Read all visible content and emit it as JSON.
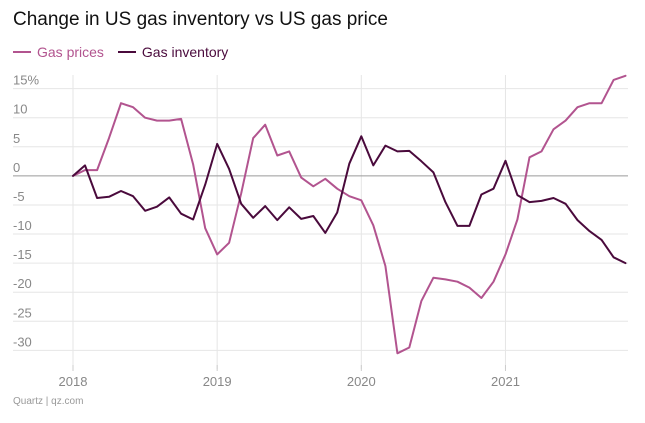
{
  "title": "Change in US gas inventory vs US gas price",
  "source": "Quartz | qz.com",
  "colors": {
    "prices": "#b2548f",
    "inventory": "#4a0a3c",
    "grid": "#e6e6e6",
    "zero": "#9a9a9a"
  },
  "chart_data": {
    "type": "line",
    "title": "Change in US gas inventory vs US gas price",
    "xlabel": "",
    "ylabel": "",
    "xlim": [
      2018.0,
      2021.85
    ],
    "ylim": [
      -32,
      17
    ],
    "y_ticks": [
      15,
      10,
      5,
      0,
      -5,
      -10,
      -15,
      -20,
      -25,
      -30
    ],
    "y_tick_labels": [
      "15%",
      "10",
      "5",
      "0",
      "-5",
      "-10",
      "-15",
      "-20",
      "-25",
      "-30"
    ],
    "x_ticks": [
      2018,
      2019,
      2020,
      2021
    ],
    "x_tick_labels": [
      "2018",
      "2019",
      "2020",
      "2021"
    ],
    "grid": true,
    "legend_position": "top-left",
    "x": [
      2018.0,
      2018.083,
      2018.167,
      2018.25,
      2018.333,
      2018.417,
      2018.5,
      2018.583,
      2018.667,
      2018.75,
      2018.833,
      2018.917,
      2019.0,
      2019.083,
      2019.167,
      2019.25,
      2019.333,
      2019.417,
      2019.5,
      2019.583,
      2019.667,
      2019.75,
      2019.833,
      2019.917,
      2020.0,
      2020.083,
      2020.167,
      2020.25,
      2020.333,
      2020.417,
      2020.5,
      2020.583,
      2020.667,
      2020.75,
      2020.833,
      2020.917,
      2021.0,
      2021.083,
      2021.167,
      2021.25,
      2021.333,
      2021.417,
      2021.5,
      2021.583,
      2021.667,
      2021.75,
      2021.833
    ],
    "series": [
      {
        "name": "Gas prices",
        "values": [
          0.0,
          1.0,
          1.0,
          6.5,
          12.5,
          11.8,
          10.0,
          9.5,
          9.5,
          9.8,
          2.0,
          -9.0,
          -13.5,
          -11.5,
          -3.0,
          6.5,
          8.8,
          3.5,
          4.2,
          -0.3,
          -1.8,
          -0.5,
          -2.2,
          -3.5,
          -4.2,
          -8.5,
          -15.5,
          -30.5,
          -29.5,
          -21.5,
          -17.5,
          -17.8,
          -18.2,
          -19.2,
          -21.0,
          -18.2,
          -13.5,
          -7.5,
          3.2,
          4.2,
          8.0,
          9.5,
          11.8,
          12.5,
          12.5,
          16.5,
          17.2
        ]
      },
      {
        "name": "Gas inventory",
        "values": [
          0.0,
          1.8,
          -3.8,
          -3.6,
          -2.6,
          -3.5,
          -6.0,
          -5.3,
          -3.7,
          -6.5,
          -7.5,
          -1.5,
          5.5,
          1.2,
          -4.8,
          -7.2,
          -5.2,
          -7.6,
          -5.4,
          -7.4,
          -6.9,
          -9.8,
          -6.3,
          2.1,
          6.8,
          1.8,
          5.2,
          4.2,
          4.3,
          2.5,
          0.6,
          -4.5,
          -8.6,
          -8.6,
          -3.2,
          -2.2,
          2.6,
          -3.3,
          -4.5,
          -4.3,
          -3.8,
          -4.8,
          -7.6,
          -9.5,
          -11.0,
          -14.0,
          -15.0
        ]
      }
    ]
  }
}
